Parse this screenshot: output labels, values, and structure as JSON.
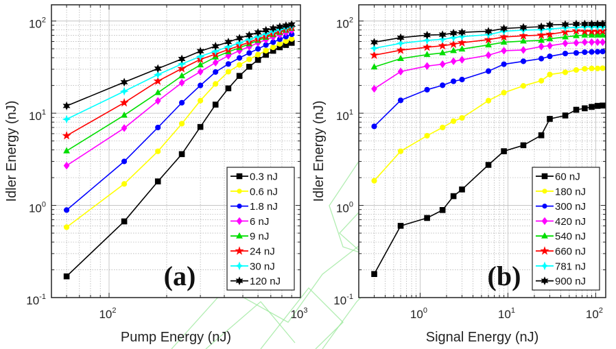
{
  "chart_data": [
    {
      "type": "line",
      "panel_label": "(a)",
      "xlabel": "Pump Energy (nJ)",
      "ylabel": "Idler Energy (nJ)",
      "xscale": "log",
      "yscale": "log",
      "xlim": [
        50,
        1000
      ],
      "ylim": [
        0.1,
        150
      ],
      "xticks": [
        {
          "base": "10",
          "exp": "2",
          "value": 100
        },
        {
          "base": "10",
          "exp": "3",
          "value": 1000
        }
      ],
      "yticks": [
        {
          "base": "10",
          "exp": "-1",
          "value": 0.1
        },
        {
          "base": "10",
          "exp": "0",
          "value": 1
        },
        {
          "base": "10",
          "exp": "1",
          "value": 10
        },
        {
          "base": "10",
          "exp": "2",
          "value": 100
        }
      ],
      "grid": true,
      "legend_position": "bottom-right",
      "x": [
        60,
        120,
        180,
        240,
        300,
        360,
        420,
        480,
        540,
        600,
        660,
        720,
        780,
        840,
        900
      ],
      "series": [
        {
          "name": "0.3 nJ",
          "color": "#000000",
          "marker": "square",
          "values": [
            0.17,
            0.67,
            1.82,
            3.6,
            7.1,
            12.4,
            18.6,
            25.4,
            31.9,
            37.9,
            43,
            47.6,
            51.9,
            55,
            58
          ]
        },
        {
          "name": "0.6 nJ",
          "color": "#ffff00",
          "marker": "circle",
          "values": [
            0.58,
            1.71,
            3.86,
            7.7,
            13.7,
            20.8,
            28.2,
            33.4,
            38.4,
            43.2,
            47.7,
            51.9,
            56.5,
            60.5,
            64
          ]
        },
        {
          "name": "1.8 nJ",
          "color": "#0000ff",
          "marker": "circle",
          "values": [
            0.89,
            3.0,
            7.0,
            13,
            20,
            28,
            34.2,
            39.8,
            45,
            49.9,
            55,
            59,
            63.4,
            67.8,
            71.8
          ]
        },
        {
          "name": "6 nJ",
          "color": "#ff00ff",
          "marker": "diamond",
          "values": [
            2.7,
            6.9,
            13.6,
            21.4,
            28.2,
            35.4,
            42,
            47.7,
            52.7,
            58,
            62.7,
            67.2,
            71,
            75.2,
            79.5
          ]
        },
        {
          "name": "9 nJ",
          "color": "#00dd00",
          "marker": "triangle",
          "values": [
            3.9,
            9.5,
            16.7,
            25.4,
            33.4,
            40.6,
            46.3,
            51.3,
            56.5,
            61.6,
            66.4,
            71,
            75.2,
            79.5,
            83.3
          ]
        },
        {
          "name": "24 nJ",
          "color": "#ff0000",
          "marker": "star",
          "values": [
            5.7,
            13,
            22.3,
            30.5,
            38.4,
            43.7,
            49,
            54,
            59,
            64,
            68.6,
            73,
            77.3,
            81.4,
            85
          ]
        },
        {
          "name": "30 nJ",
          "color": "#00ffff",
          "marker": "cross-star",
          "values": [
            8.6,
            17.3,
            26.2,
            34.2,
            41.3,
            47.1,
            52.7,
            58,
            63.4,
            67.8,
            72.6,
            76.9,
            80.9,
            84.3,
            88
          ]
        },
        {
          "name": "120 nJ",
          "color": "#000000",
          "marker": "hexagram",
          "values": [
            12,
            21.7,
            30.5,
            38.8,
            47.1,
            53.3,
            59.3,
            65.2,
            70.2,
            75.2,
            79.5,
            83.3,
            86.7,
            89.2,
            91.8
          ]
        }
      ]
    },
    {
      "type": "line",
      "panel_label": "(b)",
      "xlabel": "Signal Energy (nJ)",
      "ylabel": "Idler Energy (nJ)",
      "xscale": "log",
      "yscale": "log",
      "xlim": [
        0.2,
        130
      ],
      "ylim": [
        0.1,
        150
      ],
      "xticks": [
        {
          "base": "10",
          "exp": "0",
          "value": 1
        },
        {
          "base": "10",
          "exp": "1",
          "value": 10
        },
        {
          "base": "10",
          "exp": "2",
          "value": 100
        }
      ],
      "yticks": [
        {
          "base": "10",
          "exp": "-1",
          "value": 0.1
        },
        {
          "base": "10",
          "exp": "0",
          "value": 1
        },
        {
          "base": "10",
          "exp": "1",
          "value": 10
        },
        {
          "base": "10",
          "exp": "2",
          "value": 100
        }
      ],
      "grid": true,
      "legend_position": "bottom-right",
      "x": [
        0.3,
        0.6,
        1.2,
        1.8,
        2.4,
        3,
        6,
        9,
        15,
        24,
        30,
        45,
        60,
        75,
        90,
        105,
        120
      ],
      "series": [
        {
          "name": "60 nJ",
          "color": "#000000",
          "marker": "square",
          "values": [
            0.18,
            0.6,
            0.73,
            0.89,
            1.26,
            1.49,
            2.75,
            3.87,
            4.49,
            5.76,
            8.67,
            9.44,
            10.9,
            11.3,
            11.7,
            12.0,
            12.1
          ]
        },
        {
          "name": "180 nJ",
          "color": "#ffff00",
          "marker": "circle",
          "values": [
            1.85,
            3.87,
            5.7,
            7.0,
            8.2,
            8.9,
            13.7,
            16.7,
            19.8,
            22.5,
            26.3,
            27.8,
            29.4,
            30.3,
            30.6,
            30.6,
            30.8
          ]
        },
        {
          "name": "300 nJ",
          "color": "#0000ff",
          "marker": "circle",
          "values": [
            7.2,
            13.8,
            18,
            20.1,
            22.2,
            23.2,
            28.6,
            34,
            36.6,
            39.1,
            41.4,
            44.4,
            45.1,
            45.9,
            46.2,
            46.4,
            46.7
          ]
        },
        {
          "name": "420 nJ",
          "color": "#ff00ff",
          "marker": "diamond",
          "values": [
            18.4,
            28.3,
            32.5,
            34,
            36.6,
            38,
            42.6,
            47.7,
            48.5,
            52.9,
            54,
            57.2,
            58,
            59,
            59,
            59,
            59
          ]
        },
        {
          "name": "540 nJ",
          "color": "#00dd00",
          "marker": "triangle",
          "values": [
            31.7,
            39.1,
            43.2,
            45.1,
            47.7,
            49.6,
            55,
            58.9,
            60.6,
            61.7,
            64.1,
            67.2,
            69.2,
            70.3,
            70.3,
            70.3,
            70.3
          ]
        },
        {
          "name": "660 nJ",
          "color": "#ff0000",
          "marker": "star",
          "values": [
            42.6,
            48.3,
            52,
            54,
            56,
            58.2,
            62.8,
            67.2,
            69.2,
            70.3,
            71.9,
            76.1,
            78.3,
            77.4,
            77.4,
            77.4,
            78
          ]
        },
        {
          "name": "781 nJ",
          "color": "#00ffff",
          "marker": "cross-star",
          "values": [
            50.6,
            57.3,
            61.7,
            63.4,
            66,
            67.9,
            71.1,
            77.4,
            79.6,
            80.5,
            82,
            84.4,
            85.3,
            86.3,
            86.3,
            86.3,
            86.3
          ]
        },
        {
          "name": "900 nJ",
          "color": "#000000",
          "marker": "hexagram",
          "values": [
            58.9,
            66,
            70.3,
            71.1,
            74,
            75.3,
            77.4,
            82.9,
            85.3,
            86.7,
            90.8,
            91.8,
            92.9,
            92.9,
            92.9,
            92.9,
            92.9
          ]
        }
      ]
    }
  ],
  "watermark_color": "#9ee89e"
}
